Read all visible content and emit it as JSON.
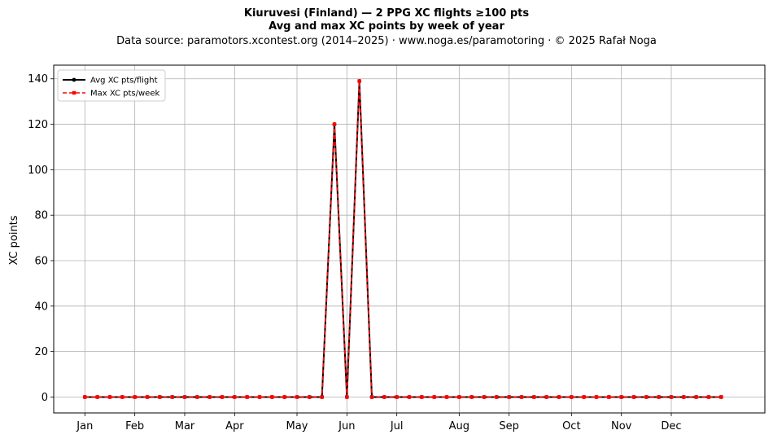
{
  "title_line1": "Kiuruvesi (Finland)  —  2 PPG XC flights ≥100 pts",
  "title_line2": "Avg and max XC points by week of year",
  "title_line3": "Data source: paramotors.xcontest.org (2014–2025)  ·  www.noga.es/paramotoring  ·  © 2025 Rafał Noga",
  "chart_data": {
    "type": "line",
    "ylabel": "XC points",
    "xlabel": "",
    "ylim": [
      -7,
      146
    ],
    "xlim": [
      -2.5,
      54.5
    ],
    "yticks": [
      0,
      20,
      40,
      60,
      80,
      100,
      120,
      140
    ],
    "month_ticks": [
      {
        "label": "Jan",
        "week": 0
      },
      {
        "label": "Feb",
        "week": 4
      },
      {
        "label": "Mar",
        "week": 8
      },
      {
        "label": "Apr",
        "week": 12
      },
      {
        "label": "May",
        "week": 17
      },
      {
        "label": "Jun",
        "week": 21
      },
      {
        "label": "Jul",
        "week": 25
      },
      {
        "label": "Aug",
        "week": 30
      },
      {
        "label": "Sep",
        "week": 34
      },
      {
        "label": "Oct",
        "week": 39
      },
      {
        "label": "Nov",
        "week": 43
      },
      {
        "label": "Dec",
        "week": 47
      }
    ],
    "x": [
      0,
      1,
      2,
      3,
      4,
      5,
      6,
      7,
      8,
      9,
      10,
      11,
      12,
      13,
      14,
      15,
      16,
      17,
      18,
      19,
      20,
      21,
      22,
      23,
      24,
      25,
      26,
      27,
      28,
      29,
      30,
      31,
      32,
      33,
      34,
      35,
      36,
      37,
      38,
      39,
      40,
      41,
      42,
      43,
      44,
      45,
      46,
      47,
      48,
      49,
      50,
      51
    ],
    "series": [
      {
        "name": "Avg XC pts/flight",
        "color": "#000000",
        "values": [
          0,
          0,
          0,
          0,
          0,
          0,
          0,
          0,
          0,
          0,
          0,
          0,
          0,
          0,
          0,
          0,
          0,
          0,
          0,
          0,
          120,
          0,
          139,
          0,
          0,
          0,
          0,
          0,
          0,
          0,
          0,
          0,
          0,
          0,
          0,
          0,
          0,
          0,
          0,
          0,
          0,
          0,
          0,
          0,
          0,
          0,
          0,
          0,
          0,
          0,
          0,
          0
        ]
      },
      {
        "name": "Max XC pts/week",
        "color": "#ff0000",
        "values": [
          0,
          0,
          0,
          0,
          0,
          0,
          0,
          0,
          0,
          0,
          0,
          0,
          0,
          0,
          0,
          0,
          0,
          0,
          0,
          0,
          120,
          0,
          139,
          0,
          0,
          0,
          0,
          0,
          0,
          0,
          0,
          0,
          0,
          0,
          0,
          0,
          0,
          0,
          0,
          0,
          0,
          0,
          0,
          0,
          0,
          0,
          0,
          0,
          0,
          0,
          0,
          0
        ]
      }
    ],
    "grid": true,
    "legend_position": "top-left"
  }
}
